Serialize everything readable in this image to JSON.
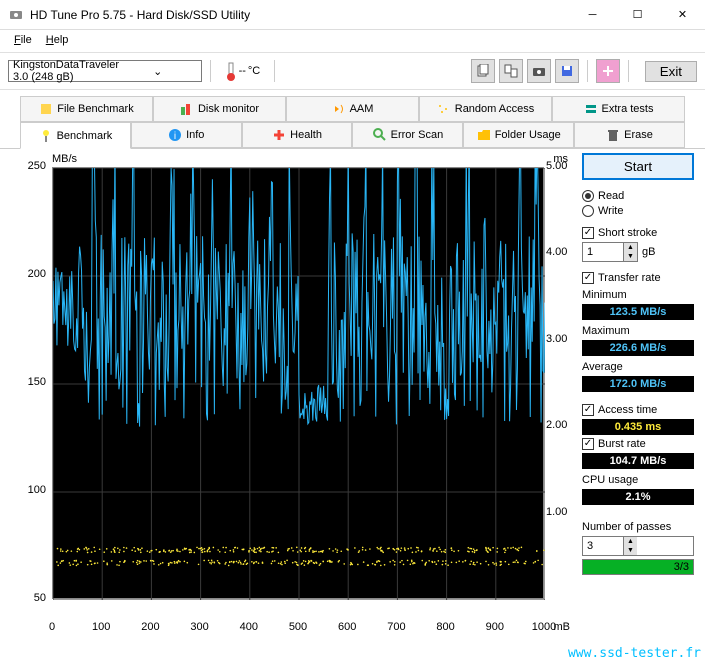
{
  "window": {
    "title": "HD Tune Pro 5.75 - Hard Disk/SSD Utility"
  },
  "menu": {
    "file": "File",
    "help": "Help"
  },
  "toolbar": {
    "device": "KingstonDataTraveler 3.0 (248 gB)",
    "temp_value": "--",
    "temp_unit": "°C",
    "exit": "Exit"
  },
  "tabs_row1": [
    {
      "label": "File Benchmark"
    },
    {
      "label": "Disk monitor"
    },
    {
      "label": "AAM"
    },
    {
      "label": "Random Access"
    },
    {
      "label": "Extra tests"
    }
  ],
  "tabs_row2": [
    {
      "label": "Benchmark",
      "active": true
    },
    {
      "label": "Info"
    },
    {
      "label": "Health"
    },
    {
      "label": "Error Scan"
    },
    {
      "label": "Folder Usage"
    },
    {
      "label": "Erase"
    }
  ],
  "chart": {
    "y_label": "MB/s",
    "y_ticks": [
      50,
      100,
      150,
      200,
      250
    ],
    "r_label": "ms",
    "r_ticks": [
      "1.00",
      "2.00",
      "3.00",
      "4.00",
      "5.00"
    ],
    "x_label": "mB",
    "x_ticks": [
      0,
      100,
      200,
      300,
      400,
      500,
      600,
      700,
      800,
      900,
      1000
    ],
    "transfer_color": "#29b6f6",
    "access_color": "#ffeb3b",
    "background": "#000000",
    "grid_color": "#3a3a3a",
    "ylim": [
      50,
      250
    ],
    "xlim": [
      0,
      1000
    ]
  },
  "side": {
    "start": "Start",
    "read": "Read",
    "write": "Write",
    "short_stroke": "Short stroke",
    "short_stroke_val": "1",
    "short_stroke_unit": "gB",
    "transfer_rate": "Transfer rate",
    "minimum": "Minimum",
    "minimum_val": "123.5 MB/s",
    "maximum": "Maximum",
    "maximum_val": "226.6 MB/s",
    "average": "Average",
    "average_val": "172.0 MB/s",
    "access_time": "Access time",
    "access_time_val": "0.435 ms",
    "burst_rate": "Burst rate",
    "burst_rate_val": "104.7 MB/s",
    "cpu_usage": "CPU usage",
    "cpu_usage_val": "2.1%",
    "passes": "Number of passes",
    "passes_val": "3",
    "progress_text": "3/3",
    "progress_pct": 100
  },
  "watermark": "www.ssd-tester.fr"
}
